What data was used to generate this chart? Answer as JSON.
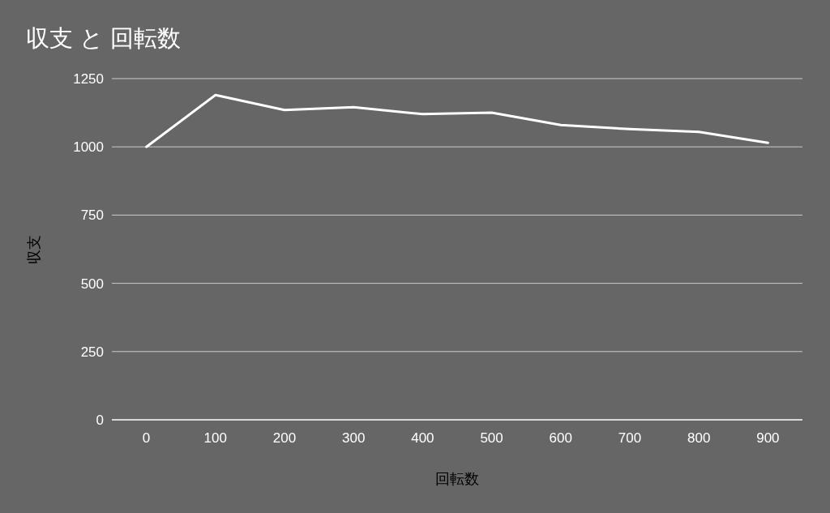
{
  "chart_data": {
    "type": "line",
    "title": "収支 と 回転数",
    "xlabel": "回転数",
    "ylabel": "収支",
    "categories": [
      "0",
      "100",
      "200",
      "300",
      "400",
      "500",
      "600",
      "700",
      "800",
      "900"
    ],
    "series": [
      {
        "color": "#ffffff",
        "values": [
          1000,
          1190,
          1135,
          1145,
          1120,
          1125,
          1080,
          1065,
          1055,
          1015
        ]
      }
    ],
    "ylim": [
      0,
      1250
    ],
    "yticks": [
      0,
      250,
      500,
      750,
      1000,
      1250
    ],
    "grid": "y"
  }
}
